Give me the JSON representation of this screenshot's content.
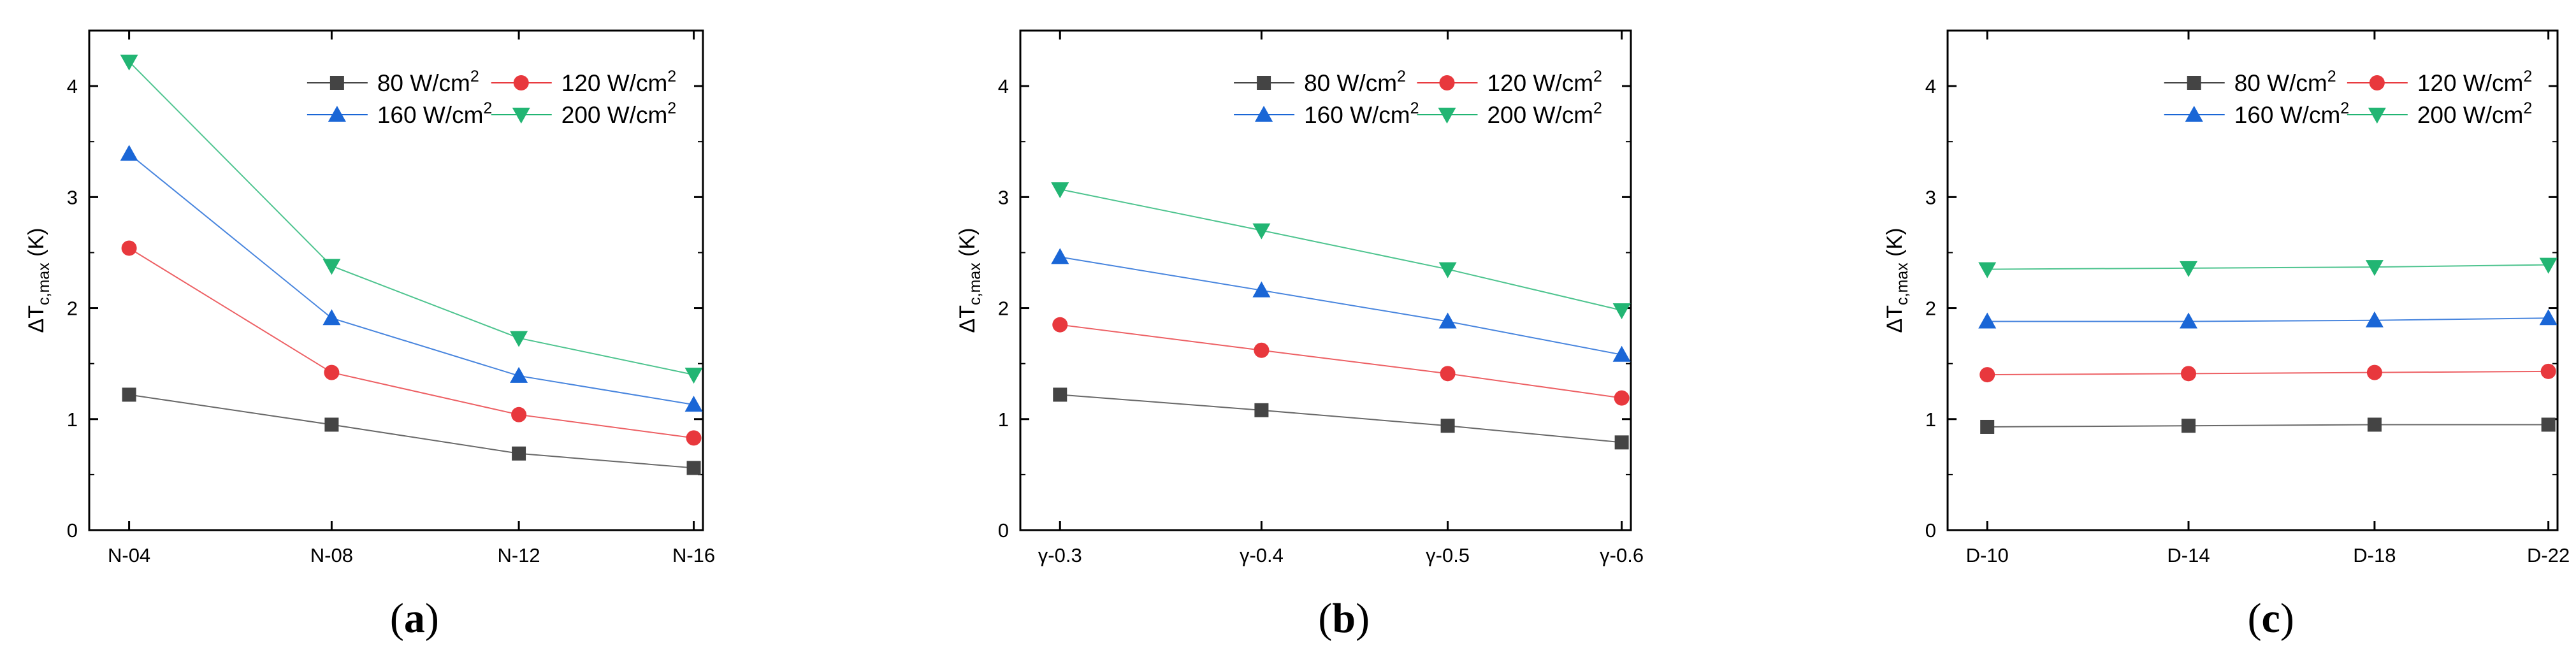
{
  "colors": {
    "s80": "#444444",
    "s120": "#e8383d",
    "s160": "#1a66d6",
    "s200": "#22b573"
  },
  "chart_data": [
    {
      "type": "line",
      "panel_label": "a",
      "title": "",
      "xlabel": "",
      "ylabel": "ΔT",
      "ylabel_subscript": "c,max",
      "ylabel_unit": "(K)",
      "ylim": [
        0,
        4.5
      ],
      "yticks": [
        0,
        1,
        2,
        3,
        4
      ],
      "yticklabels": [
        "0",
        "1",
        "2",
        "3",
        "4"
      ],
      "categories": [
        "N-04",
        "N-08",
        "N-12",
        "N-16"
      ],
      "legend_position": "top-right",
      "series": [
        {
          "name": "80 W/cm",
          "superscript": "2",
          "marker": "square",
          "color_key": "s80",
          "values": [
            1.22,
            0.95,
            0.69,
            0.56
          ]
        },
        {
          "name": "120 W/cm",
          "superscript": "2",
          "marker": "circle",
          "color_key": "s120",
          "values": [
            2.54,
            1.42,
            1.04,
            0.83
          ]
        },
        {
          "name": "160 W/cm",
          "superscript": "2",
          "marker": "triangle-up",
          "color_key": "s160",
          "values": [
            3.39,
            1.91,
            1.39,
            1.13
          ]
        },
        {
          "name": "200 W/cm",
          "superscript": "2",
          "marker": "triangle-down",
          "color_key": "s200",
          "values": [
            4.22,
            2.38,
            1.73,
            1.4
          ]
        }
      ]
    },
    {
      "type": "line",
      "panel_label": "b",
      "title": "",
      "xlabel": "",
      "ylabel": "ΔT",
      "ylabel_subscript": "c,max",
      "ylabel_unit": "(K)",
      "ylim": [
        0,
        4.5
      ],
      "yticks": [
        0,
        1,
        2,
        3,
        4
      ],
      "yticklabels": [
        "0",
        "1",
        "2",
        "3",
        "4"
      ],
      "categories": [
        "γ-0.3",
        "γ-0.4",
        "γ-0.5",
        "γ-0.6"
      ],
      "legend_position": "top-right",
      "series": [
        {
          "name": "80 W/cm",
          "superscript": "2",
          "marker": "square",
          "color_key": "s80",
          "values": [
            1.22,
            1.08,
            0.94,
            0.79
          ]
        },
        {
          "name": "120 W/cm",
          "superscript": "2",
          "marker": "circle",
          "color_key": "s120",
          "values": [
            1.85,
            1.62,
            1.41,
            1.19
          ]
        },
        {
          "name": "160 W/cm",
          "superscript": "2",
          "marker": "triangle-up",
          "color_key": "s160",
          "values": [
            2.46,
            2.16,
            1.88,
            1.58
          ]
        },
        {
          "name": "200 W/cm",
          "superscript": "2",
          "marker": "triangle-down",
          "color_key": "s200",
          "values": [
            3.07,
            2.7,
            2.35,
            1.98
          ]
        }
      ]
    },
    {
      "type": "line",
      "panel_label": "c",
      "title": "",
      "xlabel": "",
      "ylabel": "ΔT",
      "ylabel_subscript": "c,max",
      "ylabel_unit": "(K)",
      "ylim": [
        0,
        4.5
      ],
      "yticks": [
        0,
        1,
        2,
        3,
        4
      ],
      "yticklabels": [
        "0",
        "1",
        "2",
        "3",
        "4"
      ],
      "categories": [
        "D-10",
        "D-14",
        "D-18",
        "D-22"
      ],
      "legend_position": "top-right",
      "series": [
        {
          "name": "80 W/cm",
          "superscript": "2",
          "marker": "square",
          "color_key": "s80",
          "values": [
            0.93,
            0.94,
            0.95,
            0.95
          ]
        },
        {
          "name": "120 W/cm",
          "superscript": "2",
          "marker": "circle",
          "color_key": "s120",
          "values": [
            1.4,
            1.41,
            1.42,
            1.43
          ]
        },
        {
          "name": "160 W/cm",
          "superscript": "2",
          "marker": "triangle-up",
          "color_key": "s160",
          "values": [
            1.88,
            1.88,
            1.89,
            1.91
          ]
        },
        {
          "name": "200 W/cm",
          "superscript": "2",
          "marker": "triangle-down",
          "color_key": "s200",
          "values": [
            2.35,
            2.36,
            2.37,
            2.39
          ]
        }
      ]
    }
  ]
}
